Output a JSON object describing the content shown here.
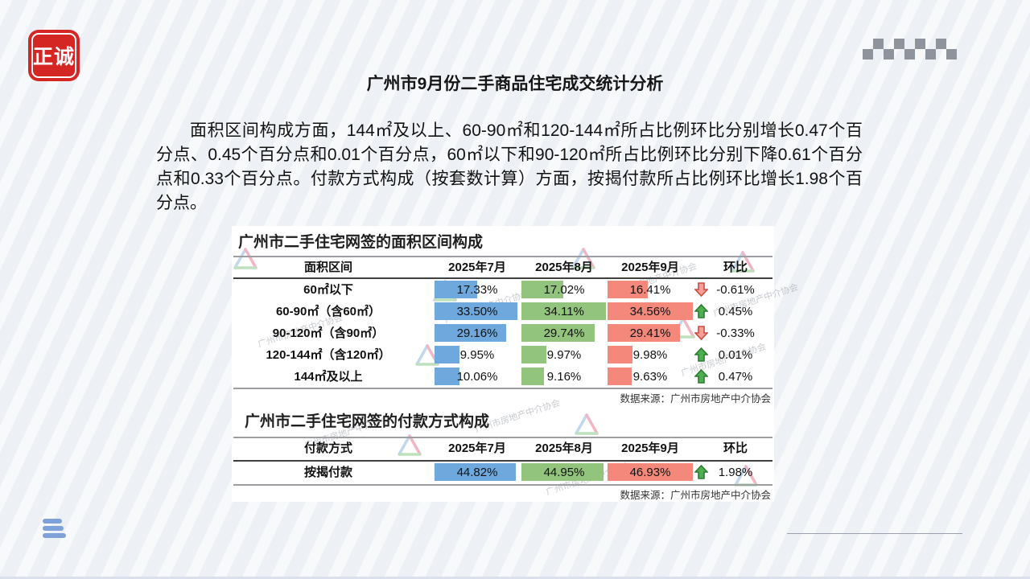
{
  "slide": {
    "logo_text": "正诚",
    "title": "广州市9月份二手商品住宅成交统计分析",
    "paragraph": "面积区间构成方面，144㎡及以上、60-90㎡和120-144㎡所占比例环比分别增长0.47个百分点、0.45个百分点和0.01个百分点，60㎡以下和90-120㎡所占比例环比分别下降0.61个百分点和0.33个百分点。付款方式构成（按套数计算）方面，按揭付款所占比例环比增长1.98个百分点。"
  },
  "watermark": "广州市房地产中介协会",
  "colors": {
    "bar_jul": "#6fa8dc",
    "bar_aug": "#93c47d",
    "bar_sep": "#f4897b",
    "arrow_up_fill": "#4caf50",
    "arrow_up_stroke": "#2e7d32",
    "arrow_down_fill": "#f2a099",
    "arrow_down_stroke": "#cc4b3f",
    "logo_red": "#d42724",
    "accent_blue": "#7da1d8",
    "checker_gray": "#8e939c",
    "wm_blue": "#74a7da",
    "wm_red": "#e0607c",
    "wm_green": "#6fbd6f"
  },
  "tables": [
    {
      "title": "广州市二手住宅网签的面积区间构成",
      "columns": [
        "面积区间",
        "2025年7月",
        "2025年8月",
        "2025年9月",
        "环比"
      ],
      "bar_max": 34.56,
      "rows": [
        {
          "label": "60㎡以下",
          "jul": "17.33%",
          "aug": "17.02%",
          "sep": "16.41%",
          "jul_v": 17.33,
          "aug_v": 17.02,
          "sep_v": 16.41,
          "trend": "down",
          "mom": "-0.61%"
        },
        {
          "label": "60-90㎡（含60㎡）",
          "jul": "33.50%",
          "aug": "34.11%",
          "sep": "34.56%",
          "jul_v": 33.5,
          "aug_v": 34.11,
          "sep_v": 34.56,
          "trend": "up",
          "mom": "0.45%"
        },
        {
          "label": "90-120㎡（含90㎡）",
          "jul": "29.16%",
          "aug": "29.74%",
          "sep": "29.41%",
          "jul_v": 29.16,
          "aug_v": 29.74,
          "sep_v": 29.41,
          "trend": "down",
          "mom": "-0.33%"
        },
        {
          "label": "120-144㎡（含120㎡）",
          "jul": "9.95%",
          "aug": "9.97%",
          "sep": "9.98%",
          "jul_v": 9.95,
          "aug_v": 9.97,
          "sep_v": 9.98,
          "trend": "up",
          "mom": "0.01%"
        },
        {
          "label": "144㎡及以上",
          "jul": "10.06%",
          "aug": "9.16%",
          "sep": "9.63%",
          "jul_v": 10.06,
          "aug_v": 9.16,
          "sep_v": 9.63,
          "trend": "up",
          "mom": "0.47%"
        }
      ],
      "source": "数据来源：广州市房地产中介协会"
    },
    {
      "title": "广州市二手住宅网签的付款方式构成",
      "columns": [
        "付款方式",
        "2025年7月",
        "2025年8月",
        "2025年9月",
        "环比"
      ],
      "bar_max": 46.93,
      "rows": [
        {
          "label": "按揭付款",
          "jul": "44.82%",
          "aug": "44.95%",
          "sep": "46.93%",
          "jul_v": 44.82,
          "aug_v": 44.95,
          "sep_v": 46.93,
          "trend": "up",
          "mom": "1.98%"
        }
      ],
      "source": "数据来源：广州市房地产中介协会"
    }
  ]
}
